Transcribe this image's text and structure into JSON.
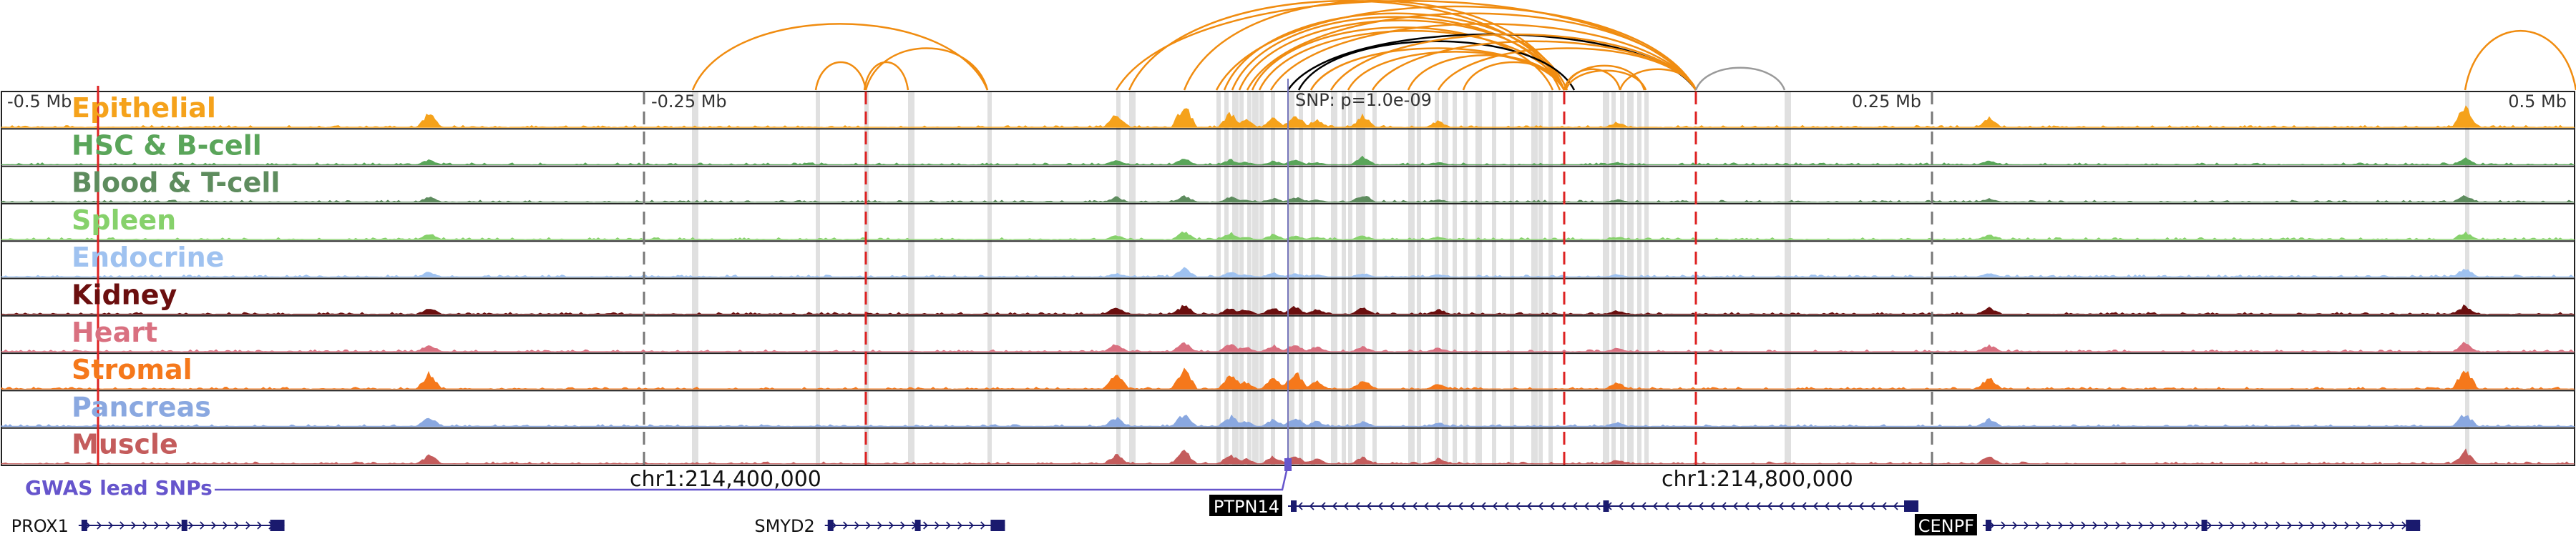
{
  "axis": {
    "min_mb": -0.5,
    "max_mb": 0.5,
    "labels": [
      {
        "text": "-0.5 Mb",
        "pos_mb": -0.5
      },
      {
        "text": "-0.25 Mb",
        "pos_mb": -0.25
      },
      {
        "text": "0.25 Mb",
        "pos_mb": 0.25
      },
      {
        "text": "0.5 Mb",
        "pos_mb": 0.5
      }
    ],
    "snp_label": "SNP: p=1.0e-09"
  },
  "tracks": [
    {
      "name": "Epithelial",
      "color": "#f5a21b",
      "peak_heights": [
        0.9,
        0.55,
        0.35,
        0.55,
        0.3,
        0.45,
        0.25,
        0.2
      ]
    },
    {
      "name": "HSC & B-cell",
      "color": "#5aa55a",
      "peak_heights": [
        0.25,
        0.2,
        0.15,
        0.2,
        0.1,
        0.3,
        0.1,
        0.1
      ]
    },
    {
      "name": "Blood & T-cell",
      "color": "#5e8c5e",
      "peak_heights": [
        0.25,
        0.2,
        0.15,
        0.2,
        0.1,
        0.3,
        0.1,
        0.1
      ]
    },
    {
      "name": "Spleen",
      "color": "#86d16b",
      "peak_heights": [
        0.3,
        0.25,
        0.2,
        0.15,
        0.1,
        0.15,
        0.1,
        0.1
      ]
    },
    {
      "name": "Endocrine",
      "color": "#9fc2f0",
      "peak_heights": [
        0.35,
        0.2,
        0.15,
        0.15,
        0.1,
        0.15,
        0.1,
        0.1
      ]
    },
    {
      "name": "Kidney",
      "color": "#6b0f0f",
      "peak_heights": [
        0.35,
        0.25,
        0.25,
        0.3,
        0.2,
        0.25,
        0.2,
        0.15
      ]
    },
    {
      "name": "Heart",
      "color": "#d97080",
      "peak_heights": [
        0.35,
        0.3,
        0.25,
        0.3,
        0.2,
        0.2,
        0.15,
        0.15
      ]
    },
    {
      "name": "Stromal",
      "color": "#f5781b",
      "peak_heights": [
        0.85,
        0.6,
        0.45,
        0.7,
        0.3,
        0.35,
        0.2,
        0.25
      ]
    },
    {
      "name": "Pancreas",
      "color": "#8aa8e0",
      "peak_heights": [
        0.5,
        0.4,
        0.3,
        0.35,
        0.2,
        0.2,
        0.15,
        0.15
      ]
    },
    {
      "name": "Muscle",
      "color": "#c45c5c",
      "peak_heights": [
        0.5,
        0.35,
        0.3,
        0.35,
        0.2,
        0.25,
        0.2,
        0.15
      ]
    }
  ],
  "annotations": {
    "gwas_label": "GWAS lead SNPs",
    "gwas_color": "#6655cc",
    "coord_left": "chr1:214,400,000",
    "coord_right": "chr1:214,800,000"
  },
  "genes": [
    {
      "name": "PROX1",
      "start_mb": -0.47,
      "end_mb": -0.39,
      "strand": "+",
      "highlighted": false
    },
    {
      "name": "SMYD2",
      "start_mb": -0.18,
      "end_mb": -0.11,
      "strand": "+",
      "highlighted": false
    },
    {
      "name": "PTPN14",
      "start_mb": 0.0,
      "end_mb": 0.245,
      "strand": "-",
      "highlighted": true
    },
    {
      "name": "CENPF",
      "start_mb": 0.27,
      "end_mb": 0.44,
      "strand": "+",
      "highlighted": true
    }
  ],
  "colors": {
    "arc_orange": "#f08c10",
    "arc_black": "#000000",
    "arc_gray": "#9a9a9a",
    "highlight_band": "#e0e0e0",
    "red_dash": "#dd2222",
    "gray_dash": "#777777",
    "gene_body": "#1a1a6e"
  }
}
